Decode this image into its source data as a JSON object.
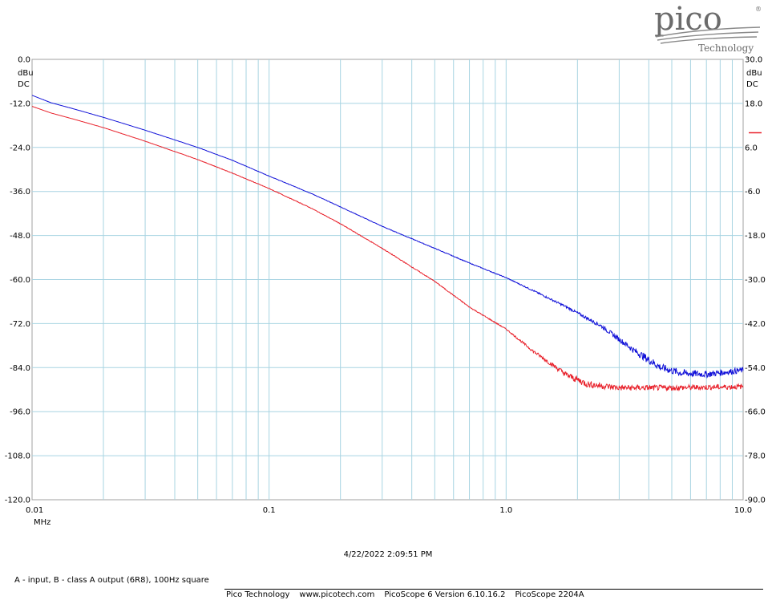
{
  "logo": {
    "brand": "pico",
    "sub": "Technology",
    "reg": "®"
  },
  "chart_data": {
    "type": "line",
    "x_scale": "log",
    "x_unit": "MHz",
    "xlim": [
      0.01,
      10.0
    ],
    "x_ticks": [
      "0.01",
      "0.1",
      "1.0",
      "10.0"
    ],
    "left_axis": {
      "unit": "dBu",
      "coupling": "DC",
      "ylim": [
        -120.0,
        0.0
      ],
      "ticks": [
        "0.0",
        "-12.0",
        "-24.0",
        "-36.0",
        "-48.0",
        "-60.0",
        "-72.0",
        "-84.0",
        "-96.0",
        "-108.0",
        "-120.0"
      ]
    },
    "right_axis": {
      "unit": "dBu",
      "coupling": "DC",
      "ylim": [
        -90.0,
        30.0
      ],
      "ticks": [
        "30.0",
        "18.0",
        "6.0",
        "-6.0",
        "-18.0",
        "-30.0",
        "-42.0",
        "-54.0",
        "-66.0",
        "-78.0",
        "-90.0"
      ],
      "marker_color": "#e8202a",
      "marker_level": 10.0
    },
    "grid": true,
    "series": [
      {
        "color": "#1010d8",
        "axis": "left",
        "points": [
          [
            0.01,
            -9.8
          ],
          [
            0.012,
            -11.8
          ],
          [
            0.015,
            -13.5
          ],
          [
            0.02,
            -15.8
          ],
          [
            0.03,
            -19.3
          ],
          [
            0.05,
            -24.0
          ],
          [
            0.07,
            -27.5
          ],
          [
            0.1,
            -31.8
          ],
          [
            0.15,
            -36.5
          ],
          [
            0.2,
            -40.2
          ],
          [
            0.3,
            -45.5
          ],
          [
            0.5,
            -51.5
          ],
          [
            0.7,
            -55.5
          ],
          [
            1.0,
            -59.5
          ],
          [
            1.3,
            -63.0
          ],
          [
            1.8,
            -67.5
          ],
          [
            2.5,
            -72.5
          ],
          [
            3.5,
            -79.5
          ],
          [
            4.5,
            -84.0
          ],
          [
            5.5,
            -85.5
          ],
          [
            7.0,
            -85.8
          ],
          [
            10.0,
            -84.7
          ]
        ],
        "noise": [
          [
            0.01,
            0.0
          ],
          [
            1.0,
            0.1
          ],
          [
            2.0,
            0.35
          ],
          [
            3.0,
            0.7
          ],
          [
            4.0,
            1.1
          ],
          [
            10.0,
            0.8
          ]
        ]
      },
      {
        "color": "#e8202a",
        "axis": "left",
        "points": [
          [
            0.01,
            -12.8
          ],
          [
            0.012,
            -14.6
          ],
          [
            0.015,
            -16.3
          ],
          [
            0.02,
            -18.6
          ],
          [
            0.03,
            -22.3
          ],
          [
            0.05,
            -27.3
          ],
          [
            0.07,
            -31.0
          ],
          [
            0.1,
            -35.2
          ],
          [
            0.15,
            -40.5
          ],
          [
            0.2,
            -44.8
          ],
          [
            0.3,
            -51.5
          ],
          [
            0.5,
            -60.5
          ],
          [
            0.7,
            -67.5
          ],
          [
            1.0,
            -73.5
          ],
          [
            1.3,
            -79.5
          ],
          [
            1.8,
            -86.0
          ],
          [
            2.2,
            -88.5
          ],
          [
            3.0,
            -89.5
          ],
          [
            5.0,
            -89.5
          ],
          [
            10.0,
            -89.2
          ]
        ],
        "noise": [
          [
            0.01,
            0.0
          ],
          [
            1.0,
            0.15
          ],
          [
            1.6,
            0.6
          ],
          [
            2.0,
            1.0
          ],
          [
            3.0,
            0.8
          ],
          [
            10.0,
            0.7
          ]
        ]
      }
    ]
  },
  "footer": {
    "timestamp": "4/22/2022 2:09:51 PM",
    "caption": "A - input, B - class A output (6R8), 100Hz square",
    "company": "Pico Technology",
    "website": "www.picotech.com",
    "software": "PicoScope 6 Version 6.10.16.2",
    "device": "PicoScope 2204A"
  }
}
